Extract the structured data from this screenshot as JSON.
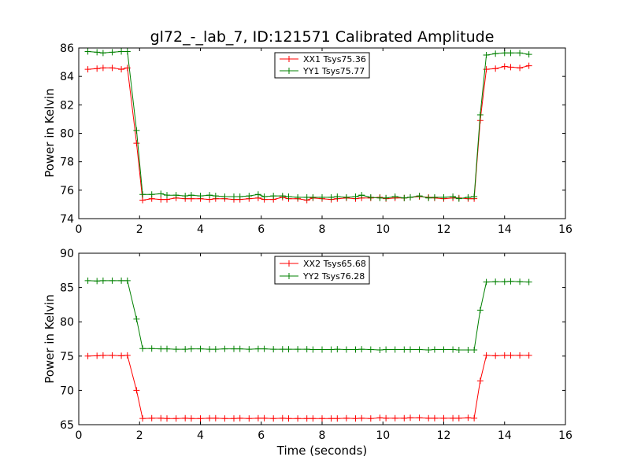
{
  "chart_data": [
    {
      "type": "line",
      "title": "gl72_-_lab_7, ID:121571 Calibrated Amplitude",
      "xlabel": "",
      "ylabel": "Power in Kelvin",
      "xlim": [
        0,
        16
      ],
      "ylim": [
        74,
        86
      ],
      "xticks": [
        "0",
        "2",
        "4",
        "6",
        "8",
        "10",
        "12",
        "14",
        "16"
      ],
      "yticks": [
        "74",
        "76",
        "78",
        "80",
        "82",
        "84",
        "86"
      ],
      "legend_position": "top-center",
      "x": [
        0.3,
        0.6,
        0.8,
        1.1,
        1.4,
        1.6,
        1.9,
        2.1,
        2.4,
        2.7,
        2.9,
        3.2,
        3.5,
        3.7,
        4.0,
        4.3,
        4.5,
        4.8,
        5.1,
        5.3,
        5.6,
        5.9,
        6.1,
        6.4,
        6.7,
        6.9,
        7.2,
        7.5,
        7.7,
        8.0,
        8.3,
        8.5,
        8.8,
        9.1,
        9.3,
        9.6,
        9.9,
        10.1,
        10.4,
        10.7,
        10.9,
        11.2,
        11.5,
        11.7,
        12.0,
        12.3,
        12.5,
        12.8,
        13.0,
        13.2,
        13.4,
        13.7,
        14.0,
        14.2,
        14.5,
        14.8
      ],
      "series": [
        {
          "name": "XX1 Tsys75.36",
          "color": "#ff0000",
          "values": [
            84.5,
            84.55,
            84.6,
            84.6,
            84.5,
            84.6,
            79.3,
            75.3,
            75.4,
            75.35,
            75.35,
            75.45,
            75.4,
            75.4,
            75.4,
            75.35,
            75.4,
            75.4,
            75.35,
            75.35,
            75.4,
            75.45,
            75.35,
            75.35,
            75.5,
            75.4,
            75.4,
            75.3,
            75.45,
            75.4,
            75.35,
            75.4,
            75.45,
            75.4,
            75.45,
            75.45,
            75.5,
            75.4,
            75.45,
            75.45,
            75.5,
            75.55,
            75.5,
            75.45,
            75.4,
            75.45,
            75.45,
            75.4,
            75.4,
            80.9,
            84.5,
            84.55,
            84.7,
            84.65,
            84.6,
            84.75
          ]
        },
        {
          "name": "YY1 Tsys75.77",
          "color": "#008000",
          "values": [
            85.75,
            85.7,
            85.65,
            85.7,
            85.75,
            85.75,
            80.2,
            75.7,
            75.7,
            75.75,
            75.65,
            75.65,
            75.6,
            75.65,
            75.6,
            75.65,
            75.6,
            75.55,
            75.55,
            75.55,
            75.6,
            75.7,
            75.55,
            75.6,
            75.6,
            75.55,
            75.5,
            75.5,
            75.5,
            75.5,
            75.5,
            75.55,
            75.5,
            75.55,
            75.65,
            75.5,
            75.45,
            75.45,
            75.55,
            75.45,
            75.5,
            75.6,
            75.45,
            75.5,
            75.5,
            75.55,
            75.4,
            75.5,
            75.55,
            81.3,
            85.5,
            85.6,
            85.65,
            85.65,
            85.65,
            85.55
          ]
        }
      ]
    },
    {
      "type": "line",
      "title": "",
      "xlabel": "Time (seconds)",
      "ylabel": "Power in Kelvin",
      "xlim": [
        0,
        16
      ],
      "ylim": [
        65,
        90
      ],
      "xticks": [
        "0",
        "2",
        "4",
        "6",
        "8",
        "10",
        "12",
        "14",
        "16"
      ],
      "yticks": [
        "65",
        "70",
        "75",
        "80",
        "85",
        "90"
      ],
      "legend_position": "top-center",
      "x": [
        0.3,
        0.6,
        0.8,
        1.1,
        1.4,
        1.6,
        1.9,
        2.1,
        2.4,
        2.7,
        2.9,
        3.2,
        3.5,
        3.7,
        4.0,
        4.3,
        4.5,
        4.8,
        5.1,
        5.3,
        5.6,
        5.9,
        6.1,
        6.4,
        6.7,
        6.9,
        7.2,
        7.5,
        7.7,
        8.0,
        8.3,
        8.5,
        8.8,
        9.1,
        9.3,
        9.6,
        9.9,
        10.1,
        10.4,
        10.7,
        10.9,
        11.2,
        11.5,
        11.7,
        12.0,
        12.3,
        12.5,
        12.8,
        13.0,
        13.2,
        13.4,
        13.7,
        14.0,
        14.2,
        14.5,
        14.8
      ],
      "series": [
        {
          "name": "XX2 Tsys65.68",
          "color": "#ff0000",
          "values": [
            75.0,
            75.05,
            75.1,
            75.1,
            75.05,
            75.1,
            70.0,
            65.9,
            65.95,
            65.95,
            65.9,
            65.9,
            65.95,
            65.9,
            65.9,
            65.95,
            65.95,
            65.9,
            65.9,
            65.95,
            65.9,
            65.95,
            65.95,
            65.9,
            65.95,
            65.9,
            65.9,
            65.9,
            65.9,
            65.9,
            65.9,
            65.9,
            65.95,
            65.9,
            65.95,
            65.9,
            66.0,
            65.95,
            65.95,
            65.95,
            66.0,
            66.0,
            65.95,
            65.95,
            65.95,
            65.95,
            65.95,
            66.0,
            65.95,
            71.4,
            75.1,
            75.05,
            75.1,
            75.1,
            75.1,
            75.1
          ]
        },
        {
          "name": "YY2 Tsys76.28",
          "color": "#008000",
          "values": [
            86.0,
            85.95,
            86.0,
            86.0,
            86.0,
            86.0,
            80.4,
            76.1,
            76.1,
            76.05,
            76.05,
            76.0,
            76.0,
            76.05,
            76.05,
            76.0,
            76.0,
            76.05,
            76.05,
            76.05,
            76.0,
            76.05,
            76.05,
            76.0,
            76.0,
            76.0,
            76.0,
            76.0,
            75.95,
            75.95,
            75.95,
            76.0,
            75.95,
            75.95,
            76.0,
            75.95,
            75.9,
            75.95,
            75.95,
            75.95,
            75.95,
            75.95,
            75.9,
            75.95,
            75.95,
            75.95,
            75.9,
            75.9,
            75.9,
            81.7,
            85.8,
            85.85,
            85.85,
            85.9,
            85.85,
            85.8
          ]
        }
      ]
    }
  ]
}
